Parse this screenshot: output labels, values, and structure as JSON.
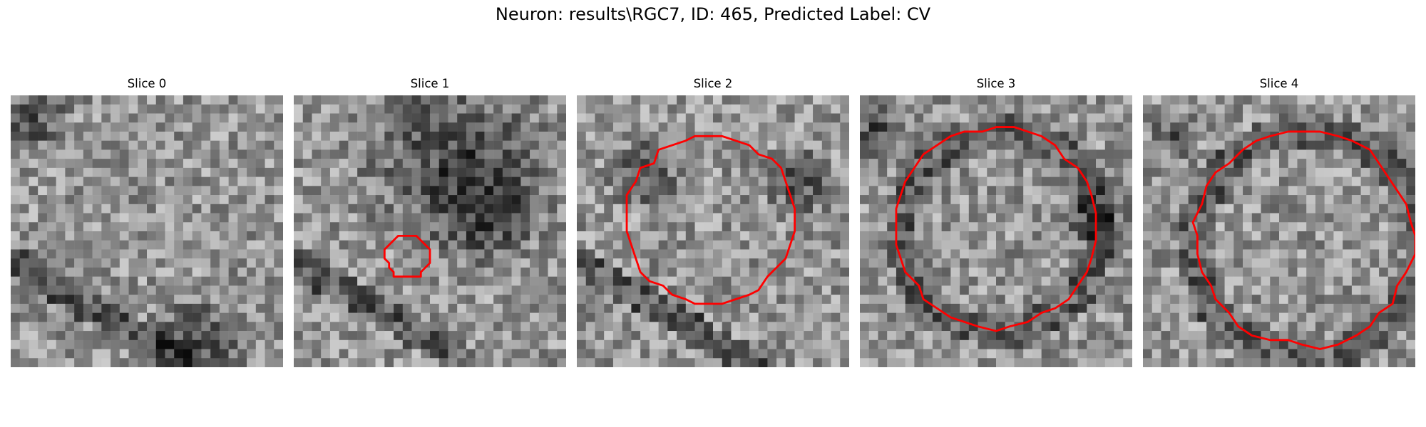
{
  "figure": {
    "title": "Neuron: results\\RGC7, ID: 465, Predicted Label: CV",
    "contour_color": "#ff0000",
    "colormap": "grayscale",
    "panels": [
      {
        "title": "Slice 0",
        "seed": 11,
        "has_contour": false
      },
      {
        "title": "Slice 1",
        "seed": 23,
        "has_contour": true
      },
      {
        "title": "Slice 2",
        "seed": 37,
        "has_contour": true
      },
      {
        "title": "Slice 3",
        "seed": 41,
        "has_contour": true
      },
      {
        "title": "Slice 4",
        "seed": 59,
        "has_contour": true
      }
    ]
  }
}
